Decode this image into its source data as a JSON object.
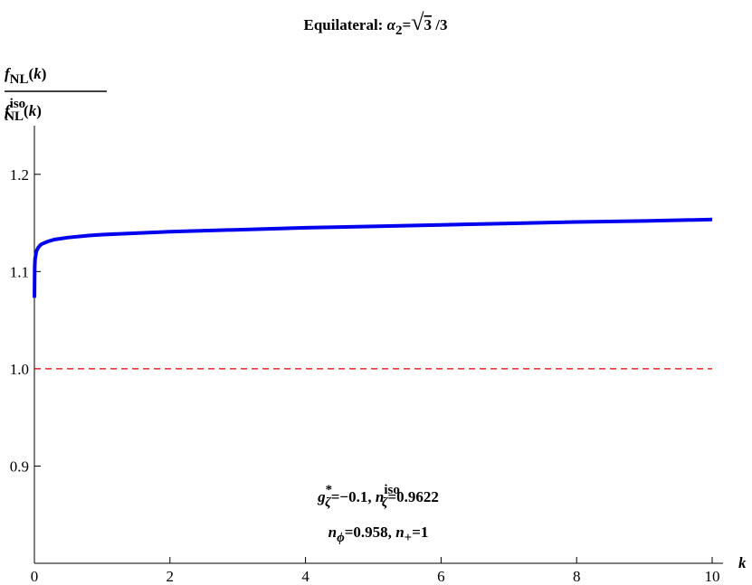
{
  "chart_data": {
    "type": "line",
    "title": [
      "Equilateral: ",
      "α",
      "2",
      "=",
      "√",
      "3",
      " /3"
    ],
    "y_label_numerator": [
      "f",
      "NL",
      "(",
      "k",
      ")"
    ],
    "y_label_denominator": [
      "f",
      "iso",
      "NL",
      "(",
      "k",
      ")"
    ],
    "x_label": "k",
    "annotations": [
      [
        "g",
        "*",
        "ζ",
        "=−0.1, ",
        "n",
        "iso",
        "ζ",
        "=0.9622"
      ],
      [
        "n",
        "ϕ",
        "=0.958, ",
        "n",
        "+",
        "=1"
      ]
    ],
    "xlim": [
      0,
      10
    ],
    "xticks": [
      0,
      2,
      4,
      6,
      8,
      10
    ],
    "ylim": [
      0.8,
      1.25
    ],
    "yticks": [
      0.9,
      {
        "value": 1,
        "label": "1.0"
      },
      1.1,
      1.2
    ],
    "series": [
      {
        "color": "#0000ee",
        "dash": false,
        "x": [
          0.001,
          0.005,
          0.01,
          0.03,
          0.06,
          0.1,
          0.2,
          0.3,
          0.5,
          0.8,
          1,
          1.5,
          2,
          3,
          4,
          5,
          6,
          7,
          8,
          9,
          10
        ],
        "values": [
          1.073,
          1.105,
          1.113,
          1.121,
          1.125,
          1.128,
          1.131,
          1.133,
          1.135,
          1.137,
          1.138,
          1.1395,
          1.141,
          1.143,
          1.145,
          1.1465,
          1.148,
          1.1495,
          1.151,
          1.152,
          1.1535
        ]
      },
      {
        "color": "#dd0000",
        "dash": true,
        "x": [
          0,
          10
        ],
        "values": [
          1,
          1
        ]
      }
    ]
  }
}
